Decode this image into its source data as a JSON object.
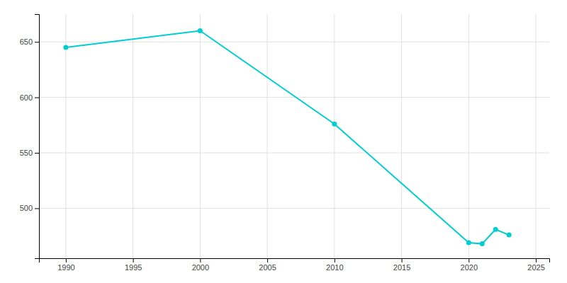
{
  "chart_data": {
    "type": "line",
    "x": [
      1990,
      2000,
      2010,
      2020,
      2021,
      2022,
      2023
    ],
    "series": [
      {
        "values": [
          645,
          660,
          576,
          469,
          468,
          481,
          476
        ],
        "color": "#00CED1",
        "marker": "circle"
      }
    ],
    "xlim": [
      1988,
      2026
    ],
    "ylim": [
      455,
      675
    ],
    "xticks": [
      1990,
      1995,
      2000,
      2005,
      2010,
      2015,
      2020,
      2025
    ],
    "yticks": [
      500,
      550,
      600,
      650
    ],
    "grid": true
  }
}
